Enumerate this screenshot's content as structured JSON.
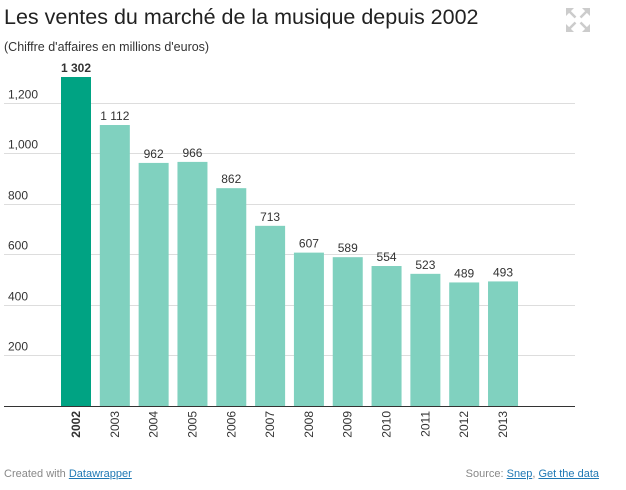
{
  "chart_data": {
    "type": "bar",
    "title": "Les ventes du marché de la musique depuis 2002",
    "subtitle": "(Chiffre d'affaires en millions d'euros)",
    "categories": [
      "2002",
      "2003",
      "2004",
      "2005",
      "2006",
      "2007",
      "2008",
      "2009",
      "2010",
      "2011",
      "2012",
      "2013"
    ],
    "values": [
      1302,
      1112,
      962,
      966,
      862,
      713,
      607,
      589,
      554,
      523,
      489,
      493
    ],
    "value_labels": [
      "1 302",
      "1 112",
      "962",
      "966",
      "862",
      "713",
      "607",
      "589",
      "554",
      "523",
      "489",
      "493"
    ],
    "highlighted": [
      true,
      false,
      false,
      false,
      false,
      false,
      false,
      false,
      false,
      false,
      false,
      false
    ],
    "yticks": [
      200,
      400,
      600,
      800,
      1000,
      1200
    ],
    "ytick_labels": [
      "200",
      "400",
      "600",
      "800",
      "1,000",
      "1,200"
    ],
    "ylim": [
      0,
      1302
    ],
    "grid": true
  },
  "footer": {
    "credit_prefix": "Created with",
    "credit_link": "Datawrapper",
    "source_prefix": "Source:",
    "source_link": "Snep",
    "separator": ",",
    "data_link": "Get the data"
  },
  "icons": {
    "expand": "expand-icon"
  },
  "colors": {
    "highlight": "#00a383",
    "bar": "#80d1bf",
    "grid": "#dddddd",
    "baseline": "#333333",
    "link": "#1f78b4",
    "icon": "#cccccc"
  }
}
